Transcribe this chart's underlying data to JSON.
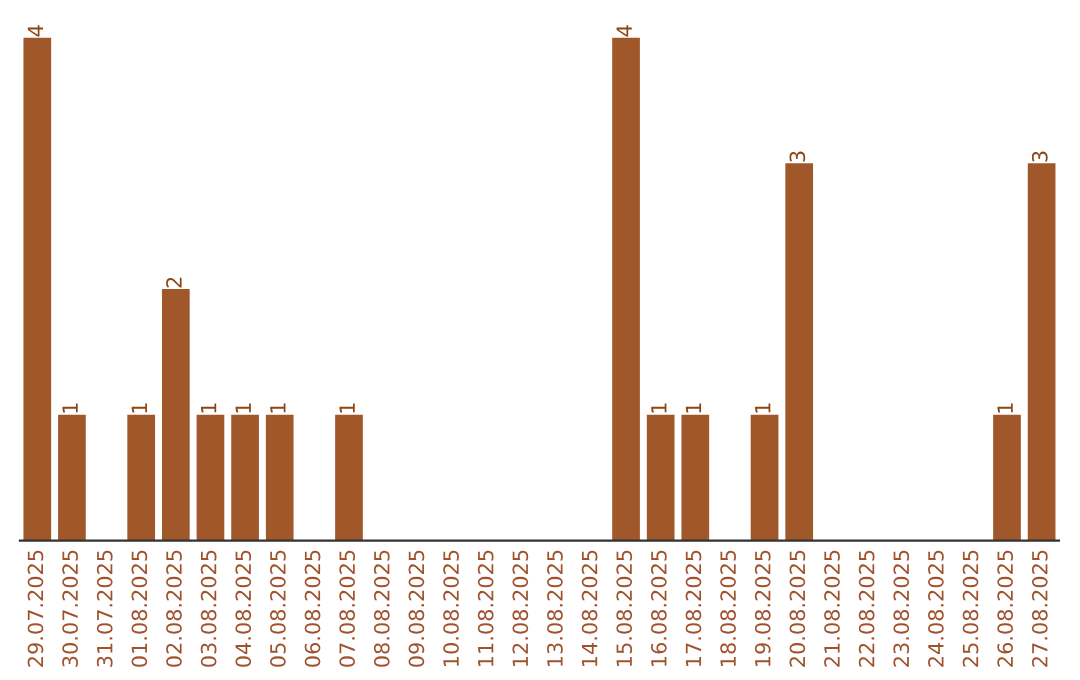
{
  "chart_data": {
    "type": "bar",
    "categories": [
      "29.07.2025",
      "30.07.2025",
      "31.07.2025",
      "01.08.2025",
      "02.08.2025",
      "03.08.2025",
      "04.08.2025",
      "05.08.2025",
      "06.08.2025",
      "07.08.2025",
      "08.08.2025",
      "09.08.2025",
      "10.08.2025",
      "11.08.2025",
      "12.08.2025",
      "13.08.2025",
      "14.08.2025",
      "15.08.2025",
      "16.08.2025",
      "17.08.2025",
      "18.08.2025",
      "19.08.2025",
      "20.08.2025",
      "21.08.2025",
      "22.08.2025",
      "23.08.2025",
      "24.08.2025",
      "25.08.2025",
      "26.08.2025",
      "27.08.2025"
    ],
    "values": [
      4,
      1,
      0,
      1,
      2,
      1,
      1,
      1,
      0,
      1,
      0,
      0,
      0,
      0,
      0,
      0,
      0,
      4,
      1,
      1,
      0,
      1,
      3,
      0,
      0,
      0,
      0,
      0,
      1,
      3
    ],
    "value_labels": [
      "4",
      "1",
      null,
      "1",
      "2",
      "1",
      "1",
      "1",
      null,
      "1",
      null,
      null,
      null,
      null,
      null,
      null,
      null,
      "4",
      "1",
      "1",
      null,
      "1",
      "3",
      null,
      null,
      null,
      null,
      null,
      "1",
      "3"
    ],
    "color": "#a0582a",
    "grid": false
  }
}
